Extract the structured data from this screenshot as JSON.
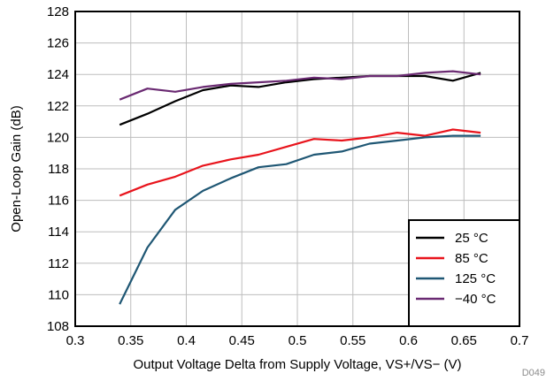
{
  "chart_data": {
    "type": "line",
    "title": "",
    "xlabel": "Output Voltage Delta from Supply Voltage, VS+/VS− (V)",
    "ylabel": "Open-Loop Gain (dB)",
    "xlim": [
      0.3,
      0.7
    ],
    "ylim": [
      108,
      128
    ],
    "x_ticks": [
      "0.3",
      "0.35",
      "0.4",
      "0.45",
      "0.5",
      "0.55",
      "0.6",
      "0.65",
      "0.7"
    ],
    "y_ticks": [
      "108",
      "110",
      "112",
      "114",
      "116",
      "118",
      "120",
      "122",
      "124",
      "126",
      "128"
    ],
    "grid": true,
    "legend_position": "bottom-right",
    "figure_code": "D049",
    "series": [
      {
        "name": "25 °C",
        "color": "#000000",
        "x": [
          0.34,
          0.365,
          0.39,
          0.415,
          0.44,
          0.465,
          0.49,
          0.515,
          0.54,
          0.565,
          0.59,
          0.615,
          0.64,
          0.665
        ],
        "y": [
          120.8,
          121.5,
          122.3,
          123.0,
          123.3,
          123.2,
          123.5,
          123.7,
          123.8,
          123.9,
          123.9,
          123.9,
          123.6,
          124.1
        ]
      },
      {
        "name": "85 °C",
        "color": "#e8141c",
        "x": [
          0.34,
          0.365,
          0.39,
          0.415,
          0.44,
          0.465,
          0.49,
          0.515,
          0.54,
          0.565,
          0.59,
          0.615,
          0.64,
          0.665
        ],
        "y": [
          116.3,
          117.0,
          117.5,
          118.2,
          118.6,
          118.9,
          119.4,
          119.9,
          119.8,
          120.0,
          120.3,
          120.1,
          120.5,
          120.3
        ]
      },
      {
        "name": "125 °C",
        "color": "#1f5774",
        "x": [
          0.34,
          0.365,
          0.39,
          0.415,
          0.44,
          0.465,
          0.49,
          0.515,
          0.54,
          0.565,
          0.59,
          0.615,
          0.64,
          0.665
        ],
        "y": [
          109.4,
          113.0,
          115.4,
          116.6,
          117.4,
          118.1,
          118.3,
          118.9,
          119.1,
          119.6,
          119.8,
          120.0,
          120.1,
          120.1
        ]
      },
      {
        "name": "−40 °C",
        "color": "#6a2a72",
        "x": [
          0.34,
          0.365,
          0.39,
          0.415,
          0.44,
          0.465,
          0.49,
          0.515,
          0.54,
          0.565,
          0.59,
          0.615,
          0.64,
          0.665
        ],
        "y": [
          122.4,
          123.1,
          122.9,
          123.2,
          123.4,
          123.5,
          123.6,
          123.8,
          123.7,
          123.9,
          123.9,
          124.1,
          124.2,
          124.0
        ]
      }
    ]
  }
}
